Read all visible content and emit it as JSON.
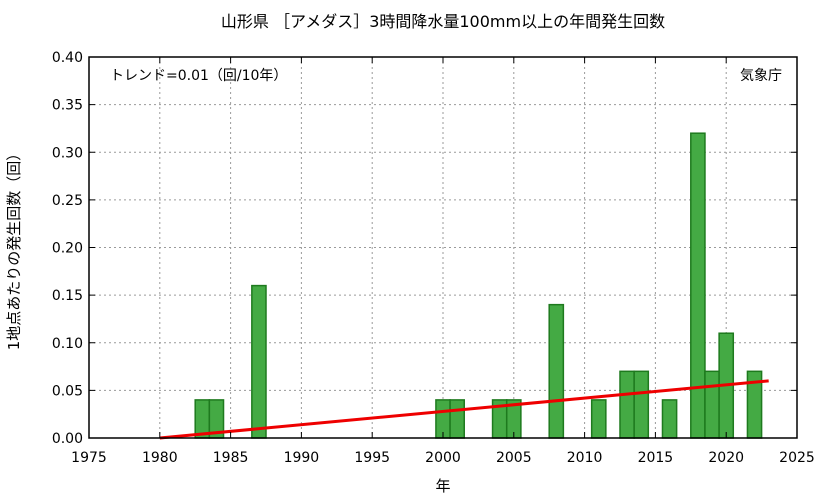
{
  "chart_data": {
    "type": "bar",
    "title": "山形県 ［アメダス］3時間降水量100mm以上の年間発生回数",
    "xlabel": "年",
    "ylabel": "1地点あたりの発生回数（回）",
    "trend_label": "トレンド=0.01（回/10年）",
    "source_label": "気象庁",
    "xlim": [
      1975,
      2025
    ],
    "ylim": [
      0,
      0.4
    ],
    "x_ticks": [
      1975,
      1980,
      1985,
      1990,
      1995,
      2000,
      2005,
      2010,
      2015,
      2020,
      2025
    ],
    "y_ticks": [
      "0.00",
      "0.05",
      "0.10",
      "0.15",
      "0.20",
      "0.25",
      "0.30",
      "0.35",
      "0.40"
    ],
    "series": [
      {
        "years": [
          1983,
          1984,
          1987,
          2000,
          2001,
          2004,
          2005,
          2008,
          2011,
          2013,
          2014,
          2016,
          2018,
          2019,
          2020,
          2022
        ],
        "values": [
          0.04,
          0.04,
          0.16,
          0.04,
          0.04,
          0.04,
          0.04,
          0.14,
          0.04,
          0.07,
          0.07,
          0.04,
          0.32,
          0.07,
          0.11,
          0.07
        ]
      }
    ],
    "trend": {
      "x": [
        1980,
        2023
      ],
      "y": [
        0.0,
        0.06
      ]
    },
    "grid": true,
    "colors": {
      "bar_fill": "#44aa44",
      "bar_edge": "#1e7a1e",
      "trend": "#ee0000"
    }
  }
}
